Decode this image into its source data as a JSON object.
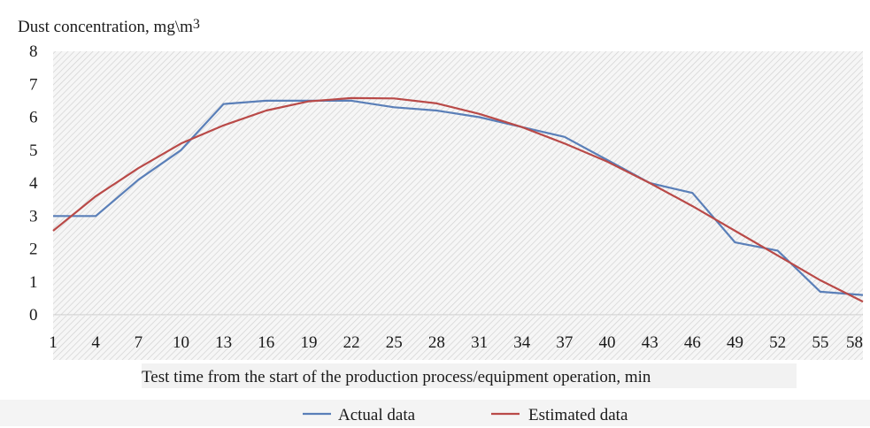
{
  "chart_data": {
    "type": "line",
    "ylabel": "Dust concentration, mg\\m",
    "ylabel_sup": "3",
    "xlabel": "Test time from the start of the production process/equipment operation, min",
    "ylim": [
      0,
      8
    ],
    "yticks": [
      "0",
      "1",
      "2",
      "3",
      "4",
      "5",
      "6",
      "7",
      "8"
    ],
    "x": [
      1,
      4,
      7,
      10,
      13,
      16,
      19,
      22,
      25,
      28,
      31,
      34,
      37,
      40,
      43,
      46,
      49,
      52,
      55,
      58
    ],
    "xtick_labels": [
      "1",
      "4",
      "7",
      "10",
      "13",
      "16",
      "19",
      "22",
      "25",
      "28",
      "31",
      "34",
      "37",
      "40",
      "43",
      "46",
      "49",
      "52",
      "55",
      "58"
    ],
    "grid": "hatched background",
    "legend_position": "bottom",
    "series": [
      {
        "name": "Actual data",
        "color": "#5a7fb8",
        "values": [
          3.0,
          3.0,
          4.1,
          5.0,
          6.4,
          6.5,
          6.5,
          6.5,
          6.3,
          6.2,
          6.0,
          5.7,
          5.4,
          4.7,
          4.0,
          3.7,
          2.2,
          1.95,
          0.7,
          0.6
        ]
      },
      {
        "name": "Estimated data",
        "color": "#b94a48",
        "values": [
          2.55,
          3.6,
          4.45,
          5.2,
          5.75,
          6.2,
          6.48,
          6.58,
          6.57,
          6.42,
          6.1,
          5.7,
          5.2,
          4.65,
          4.0,
          3.3,
          2.55,
          1.8,
          1.05,
          0.4
        ]
      }
    ]
  }
}
